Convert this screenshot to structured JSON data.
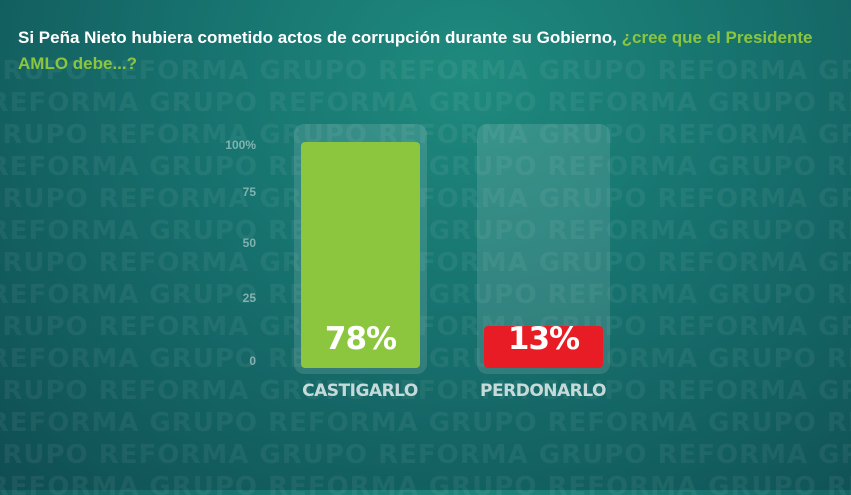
{
  "header": {
    "question_main": "Si Peña Nieto hubiera cometido actos de corrupción durante su Gobierno, ",
    "question_accent": "¿cree que el Presidente AMLO debe...?"
  },
  "watermark_text": "GRUPO REFORMA",
  "colors": {
    "castigarlo": "#8cc63f",
    "perdonarlo": "#e81c24",
    "accent_text": "#8cc63f"
  },
  "chart_data": {
    "type": "bar",
    "categories": [
      "CASTIGARLO",
      "PERDONARLO"
    ],
    "values": [
      78,
      13
    ],
    "value_labels": [
      "78%",
      "13%"
    ],
    "ylim": [
      0,
      100
    ],
    "yticks": [
      "100%",
      "75",
      "50",
      "25",
      "0"
    ],
    "title": "",
    "xlabel": "",
    "ylabel": "",
    "grid": false
  }
}
